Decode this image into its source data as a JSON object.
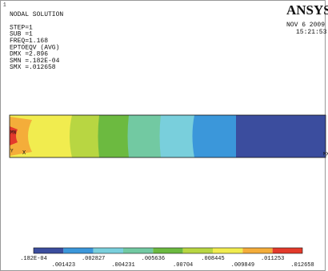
{
  "window": {
    "number": "1",
    "lines": [
      "NODAL SOLUTION",
      "STEP=1",
      "SUB =1",
      "FREQ=1.168",
      "EPTOEQV  (AVG)",
      "DMX =2.896",
      "SMN =.182E-04",
      "SMX =.012658"
    ],
    "logo": "ANSYS",
    "date": "NOV  6 2009",
    "time": "15:21:53"
  },
  "model": {
    "min_label": "MN",
    "max_label": "MX",
    "y_axis": "Y",
    "x_axis": "X"
  },
  "legend": {
    "colors": [
      "#3b4d9e",
      "#3b97da",
      "#79cfdc",
      "#72c9a2",
      "#6cba40",
      "#b8d642",
      "#f1ec4f",
      "#f4ad3a",
      "#e33a2b"
    ],
    "labels": [
      ".182E-04",
      ".001423",
      ".002827",
      ".004231",
      ".005636",
      ".00704",
      ".008445",
      ".009849",
      ".011253",
      ".012658"
    ]
  }
}
